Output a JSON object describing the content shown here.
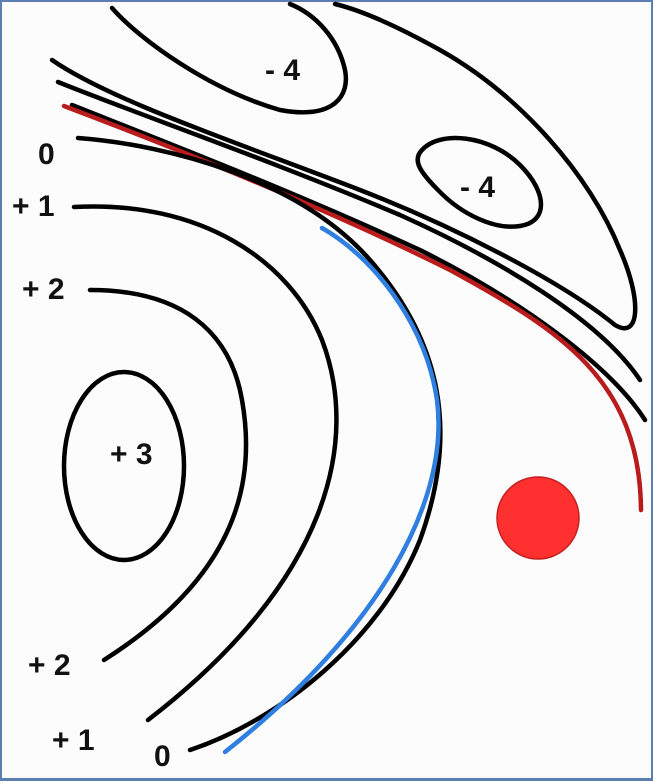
{
  "contour_labels": {
    "minus4_top": "- 4",
    "minus4_right": "- 4",
    "zero_top": "0",
    "plus1_top": "+ 1",
    "plus2_top": "+ 2",
    "plus3_center": "+ 3",
    "plus2_bottom": "+ 2",
    "plus1_bottom": "+ 1",
    "zero_bottom": "0"
  },
  "colors": {
    "contour": "#000000",
    "red_line": "#b81c1c",
    "blue_line": "#2f7fe0",
    "point": "#ff3030",
    "border": "#5a7fb0"
  }
}
